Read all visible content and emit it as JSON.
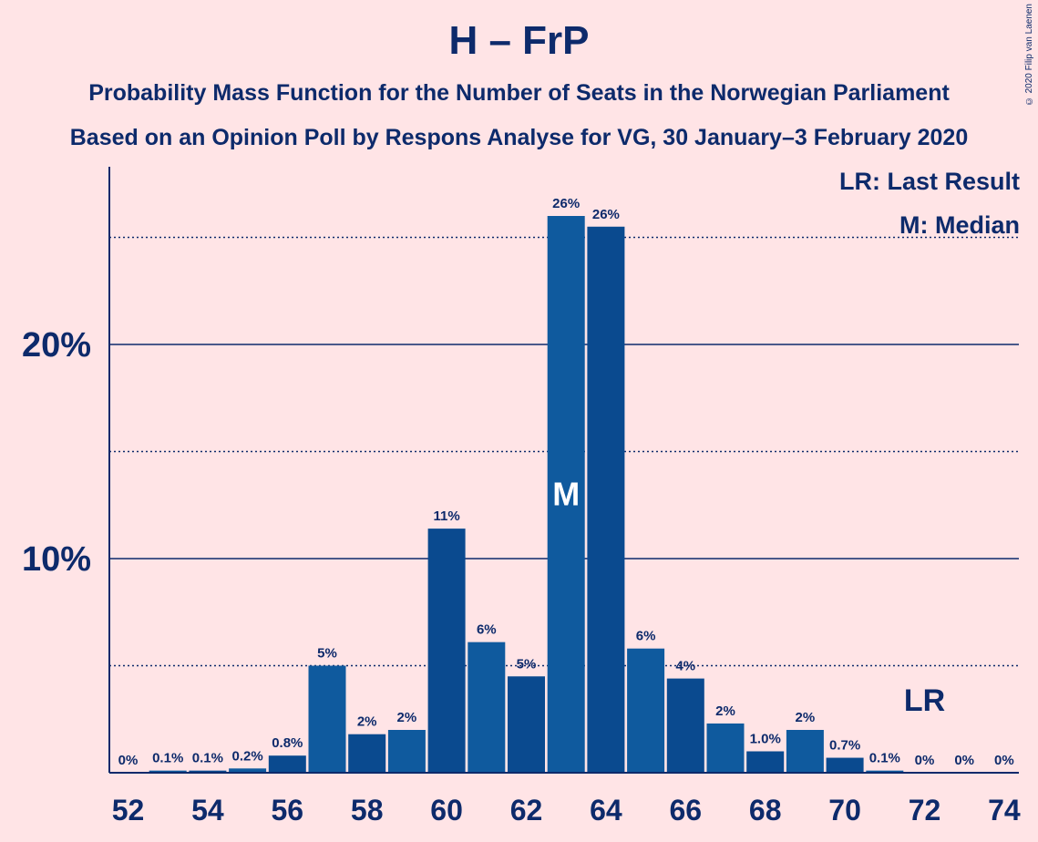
{
  "title": "H – FrP",
  "subtitle1": "Probability Mass Function for the Number of Seats in the Norwegian Parliament",
  "subtitle2": "Based on an Opinion Poll by Respons Analyse for VG, 30 January–3 February 2020",
  "copyright": "© 2020 Filip van Laenen",
  "legend": {
    "last_result": "LR: Last Result",
    "median": "M: Median"
  },
  "colors": {
    "background": "#ffe4e6",
    "bar_dark": "#0a4a8f",
    "bar_light": "#0f5a9e",
    "text": "#0d2a6b"
  },
  "chart_data": {
    "type": "bar",
    "x": [
      52,
      53,
      54,
      55,
      56,
      57,
      58,
      59,
      60,
      61,
      62,
      63,
      64,
      65,
      66,
      67,
      68,
      69,
      70,
      71,
      72,
      73,
      74
    ],
    "values": [
      0,
      0.1,
      0.1,
      0.2,
      0.8,
      5.0,
      1.8,
      2.0,
      11.4,
      6.1,
      4.5,
      26.0,
      25.5,
      5.8,
      4.4,
      2.3,
      1.0,
      2.0,
      0.7,
      0.1,
      0,
      0,
      0
    ],
    "labels": [
      "0%",
      "0.1%",
      "0.1%",
      "0.2%",
      "0.8%",
      "5%",
      "2%",
      "2%",
      "11%",
      "6%",
      "5%",
      "26%",
      "26%",
      "6%",
      "4%",
      "2%",
      "1.0%",
      "2%",
      "0.7%",
      "0.1%",
      "0%",
      "0%",
      "0%"
    ],
    "xticks": [
      52,
      54,
      56,
      58,
      60,
      62,
      64,
      66,
      68,
      70,
      72,
      74
    ],
    "yticks": [
      10,
      20
    ],
    "ytick_labels": [
      "10%",
      "20%"
    ],
    "dotted_lines": [
      5,
      15,
      25
    ],
    "ylim": [
      0,
      28
    ],
    "median": 63,
    "median_label": "M",
    "last_result": 72,
    "last_result_label": "LR"
  }
}
